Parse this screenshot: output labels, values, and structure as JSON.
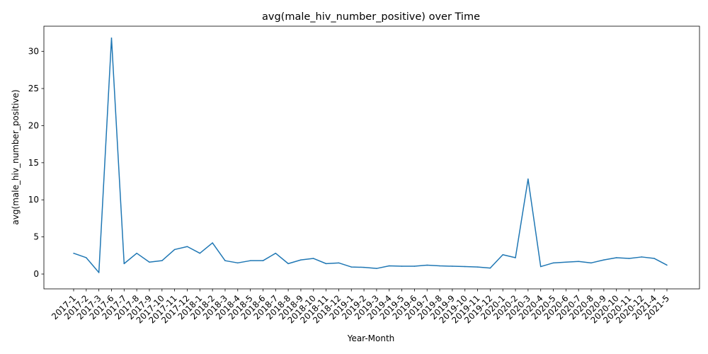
{
  "chart_data": {
    "type": "line",
    "title": "avg(male_hiv_number_positive) over Time",
    "xlabel": "Year-Month",
    "ylabel": "avg(male_hiv_number_positive)",
    "ylim": [
      -2.0,
      33.4
    ],
    "yticks": [
      0,
      5,
      10,
      15,
      20,
      25,
      30
    ],
    "grid": false,
    "legend": "none",
    "colors": {
      "line": "#1f77b4",
      "axis": "#000000"
    },
    "categories": [
      "2017-1",
      "2017-2",
      "2017-3",
      "2017-6",
      "2017-7",
      "2017-8",
      "2017-9",
      "2017-10",
      "2017-11",
      "2017-12",
      "2018-1",
      "2018-2",
      "2018-3",
      "2018-4",
      "2018-5",
      "2018-6",
      "2018-7",
      "2018-8",
      "2018-9",
      "2018-10",
      "2018-11",
      "2018-12",
      "2019-1",
      "2019-2",
      "2019-3",
      "2019-4",
      "2019-5",
      "2019-6",
      "2019-7",
      "2019-8",
      "2019-9",
      "2019-10",
      "2019-11",
      "2019-12",
      "2020-1",
      "2020-2",
      "2020-3",
      "2020-4",
      "2020-5",
      "2020-6",
      "2020-7",
      "2020-8",
      "2020-9",
      "2020-10",
      "2020-11",
      "2020-12",
      "2021-4",
      "2021-5"
    ],
    "series": [
      {
        "values": [
          2.8,
          2.2,
          0.2,
          31.8,
          1.4,
          2.8,
          1.6,
          1.8,
          3.3,
          3.7,
          2.8,
          4.2,
          1.8,
          1.5,
          1.8,
          1.8,
          2.8,
          1.4,
          1.9,
          2.1,
          1.4,
          1.5,
          0.95,
          0.9,
          0.75,
          1.1,
          1.05,
          1.05,
          1.2,
          1.1,
          1.05,
          1.0,
          0.95,
          0.8,
          2.6,
          2.2,
          12.8,
          1.0,
          1.5,
          1.6,
          1.7,
          1.5,
          1.9,
          2.2,
          2.1,
          2.3,
          2.1,
          1.2
        ]
      }
    ]
  }
}
